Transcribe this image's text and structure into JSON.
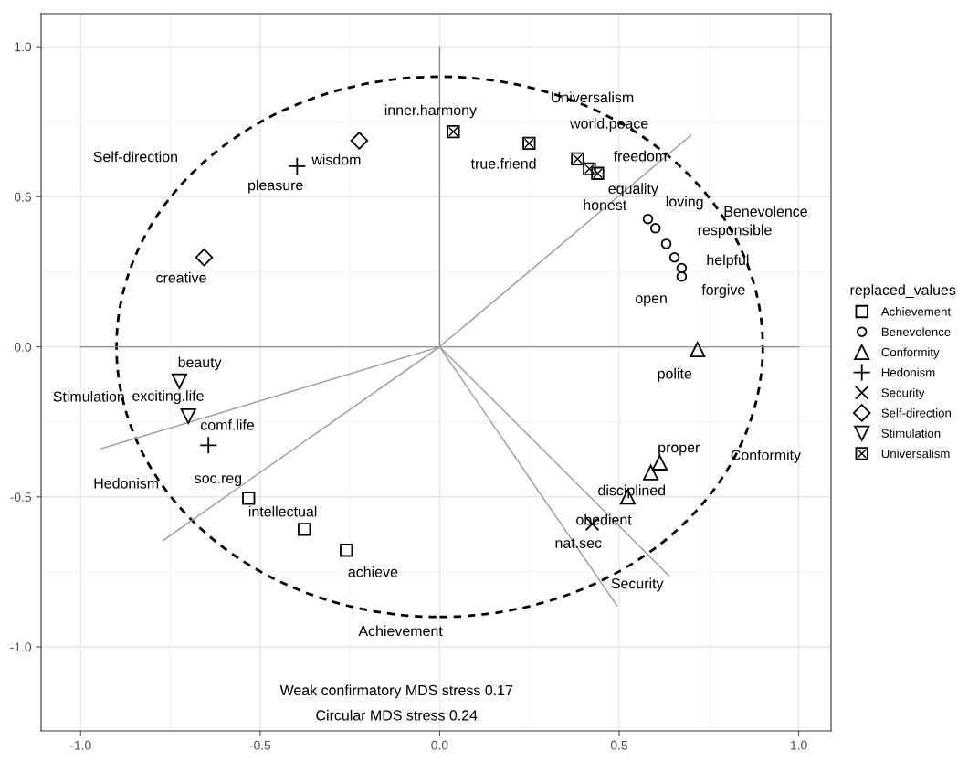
{
  "chart_data": {
    "type": "scatter",
    "legend_title": "replaced_values",
    "legend": "right",
    "grid": true,
    "xlim": [
      -1.11,
      1.09
    ],
    "ylim": [
      -1.28,
      1.11
    ],
    "xticks": [
      {
        "value": -1.0,
        "label": "-1.0"
      },
      {
        "value": -0.5,
        "label": "-0.5"
      },
      {
        "value": 0,
        "label": "0.0"
      },
      {
        "value": 0.5,
        "label": "0.5"
      },
      {
        "value": 1.0,
        "label": "1.0"
      }
    ],
    "yticks": [
      {
        "value": -1.0,
        "label": "-1.0"
      },
      {
        "value": -0.5,
        "label": "-0.5"
      },
      {
        "value": 0,
        "label": "0.0"
      },
      {
        "value": 0.5,
        "label": "0.5"
      },
      {
        "value": 1.0,
        "label": "1.0"
      }
    ],
    "series": [
      {
        "type": "line",
        "color": "#8c8c8c",
        "line_style": "solid",
        "marker": "none",
        "x": [
          -1.0,
          1.0
        ],
        "values": [
          0,
          0
        ]
      },
      {
        "type": "line",
        "color": "#8c8c8c",
        "line_style": "solid",
        "marker": "none",
        "x": [
          0,
          0
        ],
        "values": [
          0,
          1.0
        ]
      },
      {
        "type": "line",
        "color": "#9a9a9a",
        "line_style": "solid",
        "marker": "none",
        "x": [
          -0.944,
          0,
          0.7
        ],
        "values": [
          -0.34,
          0,
          0.705
        ]
      },
      {
        "type": "line",
        "color": "#9a9a9a",
        "line_style": "solid",
        "marker": "none",
        "x": [
          0,
          -0.77
        ],
        "values": [
          0,
          -0.645
        ]
      },
      {
        "type": "line",
        "color": "#9a9a9a",
        "line_style": "solid",
        "marker": "none",
        "x": [
          0,
          0.494
        ],
        "values": [
          0,
          -0.863
        ]
      },
      {
        "type": "line",
        "color": "#9a9a9a",
        "line_style": "solid",
        "marker": "none",
        "x": [
          0,
          0.639
        ],
        "values": [
          0,
          -0.763
        ]
      },
      {
        "name": "Achievement",
        "color": "#000000",
        "marker": "square",
        "x": [
          -0.532,
          -0.377,
          -0.26
        ],
        "values": [
          -0.505,
          -0.608,
          -0.678
        ]
      },
      {
        "name": "Benevolence",
        "color": "#000000",
        "marker": "circle",
        "x": [
          0.58,
          0.601,
          0.631,
          0.654,
          0.674,
          0.674
        ],
        "values": [
          0.426,
          0.395,
          0.343,
          0.298,
          0.262,
          0.234
        ]
      },
      {
        "name": "Conformity",
        "color": "#000000",
        "marker": "triangle",
        "x": [
          0.718,
          0.613,
          0.588,
          0.524
        ],
        "values": [
          -0.009,
          -0.386,
          -0.419,
          -0.5
        ]
      },
      {
        "name": "Hedonism",
        "color": "#000000",
        "marker": "plus",
        "x": [
          -0.397,
          -0.644
        ],
        "values": [
          0.602,
          -0.328
        ]
      },
      {
        "name": "Security",
        "color": "#000000",
        "marker": "x",
        "x": [
          0.425
        ],
        "values": [
          -0.59
        ]
      },
      {
        "name": "Self-direction",
        "color": "#000000",
        "marker": "diamond",
        "x": [
          -0.224,
          -0.656
        ],
        "values": [
          0.687,
          0.298
        ]
      },
      {
        "name": "Stimulation",
        "color": "#000000",
        "marker": "triangle_down",
        "x": [
          -0.725,
          -0.7
        ],
        "values": [
          -0.115,
          -0.231
        ]
      },
      {
        "name": "Universalism",
        "color": "#000000",
        "marker": "square_x",
        "x": [
          0.038,
          0.249,
          0.384,
          0.417,
          0.44
        ],
        "values": [
          0.717,
          0.678,
          0.626,
          0.593,
          0.578
        ]
      }
    ],
    "annotations": [
      {
        "text": "soc.reg",
        "x": -0.532,
        "y": -0.505
      },
      {
        "text": "intellectual",
        "x": -0.377,
        "y": -0.608
      },
      {
        "text": "achieve",
        "x": -0.26,
        "y": -0.678
      },
      {
        "text": "honest",
        "x": 0.58,
        "y": 0.426
      },
      {
        "text": "loving",
        "x": 0.601,
        "y": 0.395
      },
      {
        "text": "responsible",
        "x": 0.631,
        "y": 0.343
      },
      {
        "text": "helpful",
        "x": 0.654,
        "y": 0.298
      },
      {
        "text": "forgive",
        "x": 0.674,
        "y": 0.262
      },
      {
        "text": "open",
        "x": 0.674,
        "y": 0.234
      },
      {
        "text": "polite",
        "x": 0.718,
        "y": -0.009
      },
      {
        "text": "proper",
        "x": 0.613,
        "y": -0.386
      },
      {
        "text": "disciplined",
        "x": 0.588,
        "y": -0.419
      },
      {
        "text": "obedient",
        "x": 0.524,
        "y": -0.5
      },
      {
        "text": "pleasure",
        "x": -0.397,
        "y": 0.602
      },
      {
        "text": "comf.life",
        "x": -0.644,
        "y": -0.328
      },
      {
        "text": "nat.sec",
        "x": 0.425,
        "y": -0.59
      },
      {
        "text": "wisdom",
        "x": -0.224,
        "y": 0.687
      },
      {
        "text": "creative",
        "x": -0.656,
        "y": 0.298
      },
      {
        "text": "beauty",
        "x": -0.725,
        "y": -0.115
      },
      {
        "text": "exciting.life",
        "x": -0.7,
        "y": -0.231
      },
      {
        "text": "inner.harmony",
        "x": 0.038,
        "y": 0.717
      },
      {
        "text": "true.friend",
        "x": 0.249,
        "y": 0.678
      },
      {
        "text": "world.peace",
        "x": 0.384,
        "y": 0.626
      },
      {
        "text": "freedom",
        "x": 0.417,
        "y": 0.593
      },
      {
        "text": "equality",
        "x": 0.44,
        "y": 0.578
      },
      "Universalism",
      "Self-direction",
      "Benevolence",
      "Stimulation",
      "Hedonism",
      "Conformity",
      "Security",
      "Achievement",
      "Weak confirmatory MDS stress 0.17",
      "Circular MDS stress 0.24"
    ]
  }
}
